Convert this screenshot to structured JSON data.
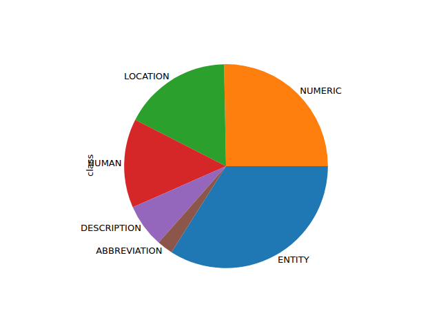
{
  "chart_data": {
    "type": "pie",
    "ylabel": "class",
    "categories": [
      "ENTITY",
      "NUMERIC",
      "LOCATION",
      "HUMAN",
      "DESCRIPTION",
      "ABBREVIATION"
    ],
    "values": [
      34,
      25.3,
      17.2,
      14.1,
      6.9,
      2.5
    ],
    "colors": [
      "#1f77b4",
      "#ff7f0e",
      "#2ca02c",
      "#d62728",
      "#9467bd",
      "#8c564b"
    ]
  }
}
